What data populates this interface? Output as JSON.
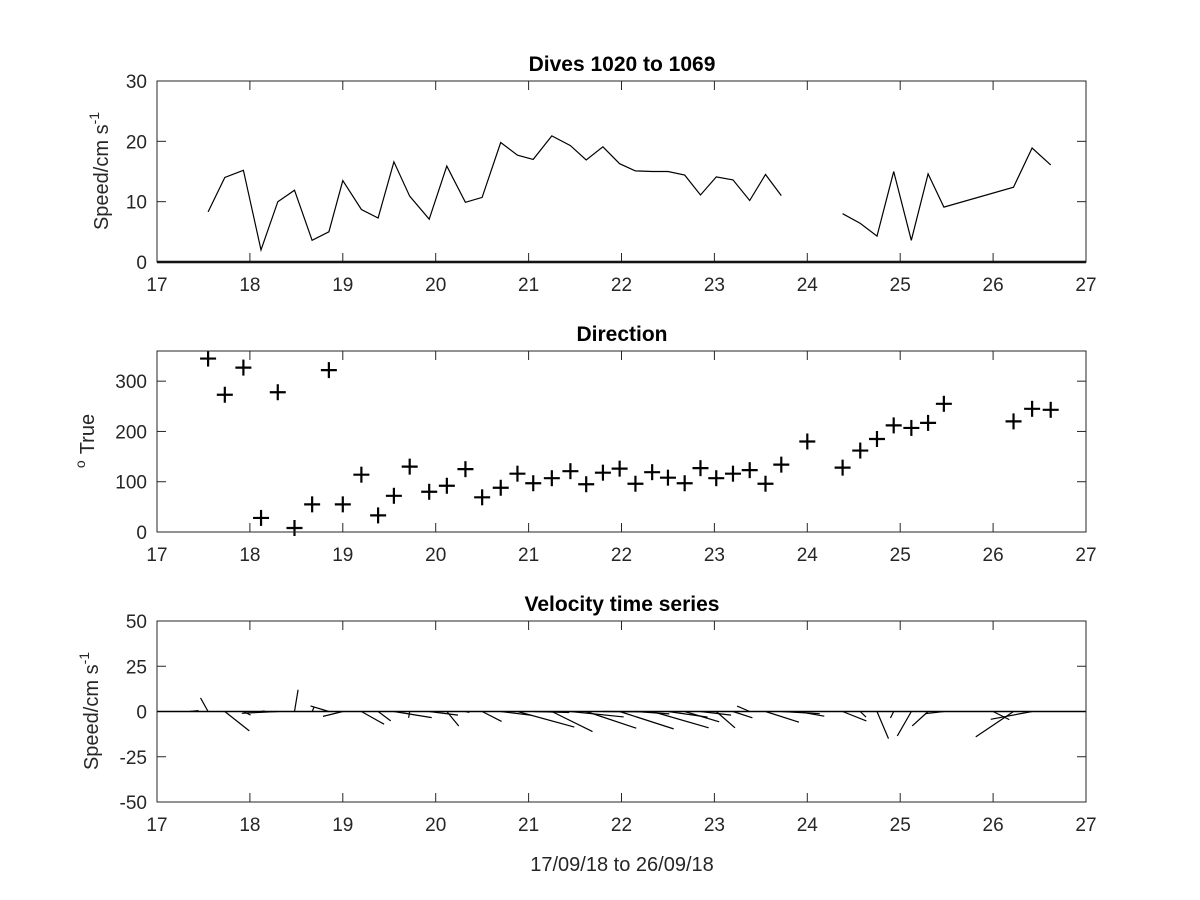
{
  "chart_data": [
    {
      "type": "line",
      "title": "Dives 1020 to 1069",
      "ylabel": "Speed/cm s",
      "ylabel_exponent": "-1",
      "xlim": [
        17,
        27
      ],
      "ylim": [
        0,
        30
      ],
      "xticks": [
        17,
        18,
        19,
        20,
        21,
        22,
        23,
        24,
        25,
        26,
        27
      ],
      "yticks": [
        0,
        10,
        20,
        30
      ],
      "grid": false,
      "series": [
        {
          "color": "#000000",
          "segments": [
            [
              [
                17.55,
                8.3
              ],
              [
                17.73,
                14.0
              ],
              [
                17.93,
                15.2
              ],
              [
                18.12,
                2.0
              ],
              [
                18.3,
                10.0
              ],
              [
                18.48,
                11.9
              ],
              [
                18.67,
                3.6
              ],
              [
                18.85,
                5.0
              ],
              [
                19.0,
                13.5
              ],
              [
                19.2,
                8.7
              ],
              [
                19.38,
                7.3
              ],
              [
                19.55,
                16.6
              ],
              [
                19.72,
                10.9
              ],
              [
                19.93,
                7.1
              ],
              [
                20.12,
                15.9
              ],
              [
                20.32,
                9.9
              ],
              [
                20.5,
                10.7
              ],
              [
                20.7,
                19.8
              ],
              [
                20.88,
                17.7
              ],
              [
                21.05,
                17.0
              ],
              [
                21.25,
                20.9
              ],
              [
                21.45,
                19.3
              ],
              [
                21.62,
                16.9
              ],
              [
                21.8,
                19.1
              ],
              [
                21.98,
                16.3
              ],
              [
                22.15,
                15.1
              ],
              [
                22.33,
                15.0
              ],
              [
                22.5,
                15.0
              ],
              [
                22.68,
                14.4
              ],
              [
                22.85,
                11.1
              ],
              [
                23.02,
                14.1
              ],
              [
                23.2,
                13.6
              ],
              [
                23.38,
                10.2
              ],
              [
                23.55,
                14.5
              ],
              [
                23.72,
                11.0
              ]
            ],
            [
              [
                24.38,
                8.0
              ],
              [
                24.57,
                6.4
              ],
              [
                24.75,
                4.3
              ],
              [
                24.93,
                15.0
              ],
              [
                25.12,
                3.6
              ],
              [
                25.3,
                14.6
              ],
              [
                25.47,
                9.1
              ],
              [
                26.22,
                12.4
              ],
              [
                26.42,
                18.9
              ],
              [
                26.62,
                16.1
              ]
            ]
          ]
        }
      ]
    },
    {
      "type": "scatter",
      "title": "Direction",
      "ylabel": "True",
      "ylabel_prefix": "o",
      "marker": "+",
      "xlim": [
        17,
        27
      ],
      "ylim": [
        0,
        360
      ],
      "xticks": [
        17,
        18,
        19,
        20,
        21,
        22,
        23,
        24,
        25,
        26,
        27
      ],
      "yticks": [
        0,
        100,
        200,
        300
      ],
      "grid": false,
      "x": [
        17.55,
        17.73,
        17.93,
        18.12,
        18.3,
        18.48,
        18.67,
        18.85,
        19.0,
        19.2,
        19.38,
        19.55,
        19.72,
        19.93,
        20.12,
        20.32,
        20.5,
        20.7,
        20.88,
        21.05,
        21.25,
        21.45,
        21.62,
        21.8,
        21.98,
        22.15,
        22.33,
        22.5,
        22.68,
        22.85,
        23.02,
        23.2,
        23.38,
        23.55,
        23.72,
        24.0,
        24.38,
        24.57,
        24.75,
        24.93,
        25.12,
        25.3,
        25.47,
        26.22,
        26.42,
        26.62
      ],
      "y": [
        345,
        273,
        327,
        28,
        278,
        8,
        55,
        322,
        55,
        114,
        33,
        72,
        130,
        80,
        92,
        125,
        69,
        88,
        116,
        97,
        107,
        121,
        95,
        118,
        126,
        96,
        119,
        108,
        97,
        127,
        107,
        116,
        123,
        96,
        134,
        180,
        128,
        162,
        185,
        212,
        207,
        217,
        255,
        220,
        245,
        243
      ]
    },
    {
      "type": "quiver",
      "title": "Velocity time series",
      "ylabel": "Speed/cm s",
      "ylabel_exponent": "-1",
      "xlabel": "17/09/18 to 26/09/18",
      "xlim": [
        17,
        27
      ],
      "ylim": [
        -50,
        50
      ],
      "xticks": [
        17,
        18,
        19,
        20,
        21,
        22,
        23,
        24,
        25,
        26,
        27
      ],
      "yticks": [
        -50,
        -25,
        0,
        25,
        50
      ],
      "grid": false,
      "origin_x": [
        17.35,
        17.55,
        17.73,
        17.93,
        18.12,
        18.3,
        18.48,
        18.67,
        18.85,
        19.0,
        19.2,
        19.38,
        19.55,
        19.72,
        19.93,
        20.12,
        20.32,
        20.5,
        20.7,
        20.88,
        21.05,
        21.25,
        21.45,
        21.62,
        21.8,
        21.98,
        22.15,
        22.33,
        22.5,
        22.68,
        22.85,
        23.02,
        23.2,
        23.38,
        23.55,
        23.72,
        23.9,
        24.38,
        24.57,
        24.75,
        24.93,
        25.12,
        25.3,
        25.47,
        26.0,
        26.22,
        26.42
      ],
      "u": [
        2.5,
        -2.1,
        6.8,
        2.0,
        1.0,
        -10.0,
        1.0,
        0.5,
        -5.1,
        -5.5,
        6.3,
        3.5,
        10.5,
        -0.3,
        8.0,
        3.3,
        1.1,
        5.4,
        8.5,
        15.8,
        10.0,
        11.3,
        14.8,
        13.9,
        14.0,
        15.0,
        9.4,
        15.7,
        11.0,
        9.6,
        8.5,
        5.2,
        5.4,
        -3.5,
        9.3,
        10.7,
        7.3,
        6.6,
        1.6,
        3.2,
        -0.9,
        -3.9,
        -4.4,
        -5.2,
        4.5,
        -10.5,
        -11.5
      ],
      "v": [
        0.5,
        7.5,
        -10.7,
        -2.0,
        0.3,
        -1.0,
        12.0,
        2.3,
        3.1,
        -2.7,
        -7.0,
        -5.2,
        -3.4,
        -3.5,
        -2.0,
        -8.0,
        -0.5,
        -5.5,
        -2.1,
        -8.6,
        -0.6,
        -11.1,
        -3.0,
        -9.2,
        -0.2,
        -9.6,
        -1.3,
        -9.0,
        -3.1,
        -5.7,
        -2.0,
        -9.0,
        -3.5,
        3.0,
        -5.9,
        -1.2,
        -2.6,
        -5.2,
        -3.1,
        -15.0,
        -3.6,
        -13.5,
        -8.0,
        -1.2,
        -4.5,
        -14.0,
        -4.3
      ]
    }
  ]
}
